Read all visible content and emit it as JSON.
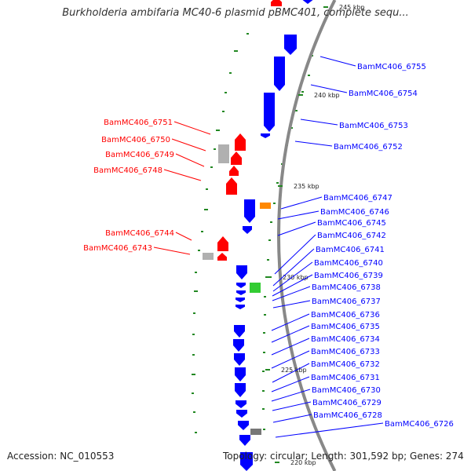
{
  "title": "Burkholderia ambifaria MC40-6 plasmid pBMC401, complete sequ...",
  "footer": {
    "accession": "Accession: NC_010553",
    "summary": "Topology: circular; Length: 301,592 bp; Genes: 274"
  },
  "colors": {
    "forward": "#ff0000",
    "reverse": "#0000ff",
    "other": "#b0b0b0",
    "orange": "#ff8800",
    "green": "#33cc33",
    "backbone": "#888888",
    "gc_marks": "#228822"
  },
  "scale": {
    "ticks": [
      "245 kbp",
      "240 kbp",
      "235 kbp",
      "230 kbp",
      "225 kbp",
      "220 kbp"
    ]
  },
  "genes": {
    "forward": [
      "BamMC406_6751",
      "BamMC406_6750",
      "BamMC406_6749",
      "BamMC406_6748",
      "BamMC406_6744",
      "BamMC406_6743"
    ],
    "reverse": [
      "BamMC406_6755",
      "BamMC406_6754",
      "BamMC406_6753",
      "BamMC406_6752",
      "BamMC406_6747",
      "BamMC406_6746",
      "BamMC406_6745",
      "BamMC406_6742",
      "BamMC406_6741",
      "BamMC406_6740",
      "BamMC406_6739",
      "BamMC406_6738",
      "BamMC406_6737",
      "BamMC406_6736",
      "BamMC406_6735",
      "BamMC406_6734",
      "BamMC406_6733",
      "BamMC406_6732",
      "BamMC406_6731",
      "BamMC406_6730",
      "BamMC406_6729",
      "BamMC406_6728",
      "BamMC406_6726"
    ]
  }
}
